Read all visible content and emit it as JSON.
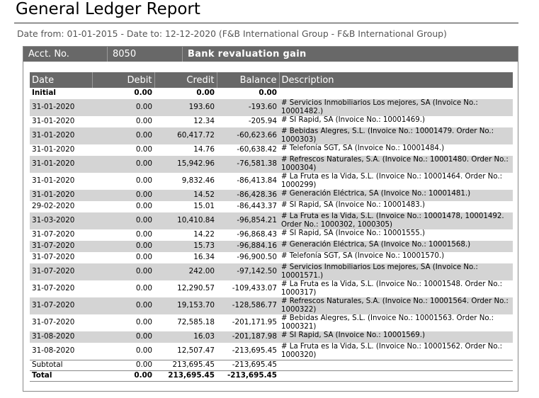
{
  "report": {
    "title": "General Ledger Report",
    "subtitle": "Date from: 01-01-2015 - Date to: 12-12-2020 (F&B International Group - F&B International Group)"
  },
  "account": {
    "label": "Acct. No.",
    "number": "8050",
    "name": "Bank revaluation gain"
  },
  "table": {
    "headers": [
      "Date",
      "Debit",
      "Credit",
      "Balance",
      "Description"
    ],
    "initial": {
      "date": "Initial",
      "debit": "0.00",
      "credit": "0.00",
      "balance": "0.00",
      "desc": ""
    },
    "rows": [
      {
        "date": "31-01-2020",
        "debit": "0.00",
        "credit": "193.60",
        "balance": "-193.60",
        "desc": "# Servicios Inmobiliarios Los mejores, SA (Invoice No.: 10001482.)"
      },
      {
        "date": "31-01-2020",
        "debit": "0.00",
        "credit": "12.34",
        "balance": "-205.94",
        "desc": "# SI Rapid, SA (Invoice No.: 10001469.)"
      },
      {
        "date": "31-01-2020",
        "debit": "0.00",
        "credit": "60,417.72",
        "balance": "-60,623.66",
        "desc": "# Bebidas Alegres, S.L. (Invoice No.: 10001479. Order No.: 1000303)"
      },
      {
        "date": "31-01-2020",
        "debit": "0.00",
        "credit": "14.76",
        "balance": "-60,638.42",
        "desc": "# Telefonía SGT, SA (Invoice No.: 10001484.)"
      },
      {
        "date": "31-01-2020",
        "debit": "0.00",
        "credit": "15,942.96",
        "balance": "-76,581.38",
        "desc": "# Refrescos Naturales, S.A. (Invoice No.: 10001480. Order No.: 1000304)"
      },
      {
        "date": "31-01-2020",
        "debit": "0.00",
        "credit": "9,832.46",
        "balance": "-86,413.84",
        "desc": "# La Fruta es la Vida, S.L. (Invoice No.: 10001464. Order No.: 1000299)"
      },
      {
        "date": "31-01-2020",
        "debit": "0.00",
        "credit": "14.52",
        "balance": "-86,428.36",
        "desc": "# Generación Eléctrica, SA (Invoice No.: 10001481.)"
      },
      {
        "date": "29-02-2020",
        "debit": "0.00",
        "credit": "15.01",
        "balance": "-86,443.37",
        "desc": "# SI Rapid, SA (Invoice No.: 10001483.)"
      },
      {
        "date": "31-03-2020",
        "debit": "0.00",
        "credit": "10,410.84",
        "balance": "-96,854.21",
        "desc": "# La Fruta es la Vida, S.L. (Invoice No.: 10001478, 10001492. Order No.: 1000302, 1000305)"
      },
      {
        "date": "31-07-2020",
        "debit": "0.00",
        "credit": "14.22",
        "balance": "-96,868.43",
        "desc": "# SI Rapid, SA (Invoice No.: 10001555.)"
      },
      {
        "date": "31-07-2020",
        "debit": "0.00",
        "credit": "15.73",
        "balance": "-96,884.16",
        "desc": "# Generación Eléctrica, SA (Invoice No.: 10001568.)"
      },
      {
        "date": "31-07-2020",
        "debit": "0.00",
        "credit": "16.34",
        "balance": "-96,900.50",
        "desc": "# Telefonía SGT, SA (Invoice No.: 10001570.)"
      },
      {
        "date": "31-07-2020",
        "debit": "0.00",
        "credit": "242.00",
        "balance": "-97,142.50",
        "desc": "# Servicios Inmobiliarios Los mejores, SA (Invoice No.: 10001571.)"
      },
      {
        "date": "31-07-2020",
        "debit": "0.00",
        "credit": "12,290.57",
        "balance": "-109,433.07",
        "desc": "# La Fruta es la Vida, S.L. (Invoice No.: 10001548. Order No.: 1000317)"
      },
      {
        "date": "31-07-2020",
        "debit": "0.00",
        "credit": "19,153.70",
        "balance": "-128,586.77",
        "desc": "# Refrescos Naturales, S.A. (Invoice No.: 10001564. Order No.: 1000322)"
      },
      {
        "date": "31-07-2020",
        "debit": "0.00",
        "credit": "72,585.18",
        "balance": "-201,171.95",
        "desc": "# Bebidas Alegres, S.L. (Invoice No.: 10001563. Order No.: 1000321)"
      },
      {
        "date": "31-08-2020",
        "debit": "0.00",
        "credit": "16.03",
        "balance": "-201,187.98",
        "desc": "# SI Rapid, SA (Invoice No.: 10001569.)"
      },
      {
        "date": "31-08-2020",
        "debit": "0.00",
        "credit": "12,507.47",
        "balance": "-213,695.45",
        "desc": "# La Fruta es la Vida, S.L. (Invoice No.: 10001562. Order No.: 1000320)"
      }
    ],
    "subtotal": {
      "label": "Subtotal",
      "debit": "0.00",
      "credit": "213,695.45",
      "balance": "-213,695.45"
    },
    "total": {
      "label": "Total",
      "debit": "0.00",
      "credit": "213,695.45",
      "balance": "-213,695.45"
    }
  }
}
